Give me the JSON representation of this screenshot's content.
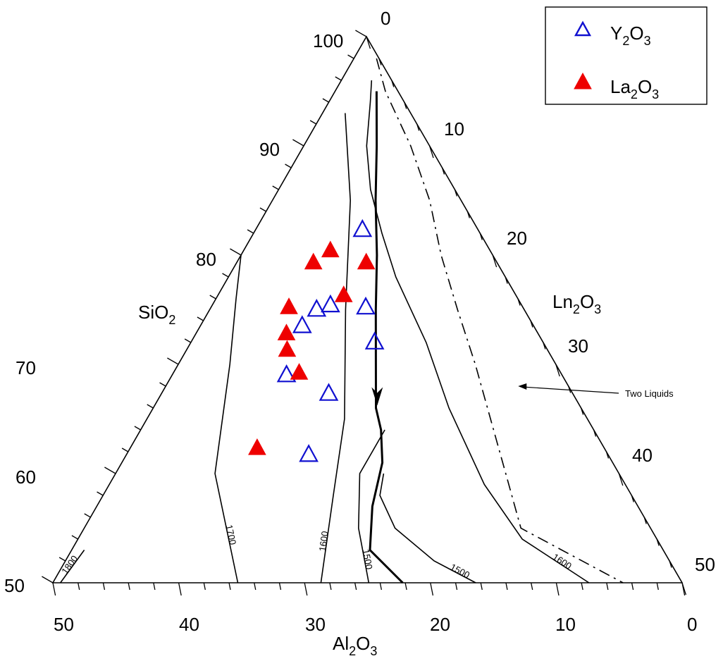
{
  "chart_data": {
    "type": "scatter",
    "subtype": "ternary",
    "axes": {
      "left": {
        "component": "SiO",
        "component_sub": "2",
        "ticks": [
          "50",
          "60",
          "70",
          "80",
          "90",
          "100"
        ]
      },
      "bottom": {
        "component": "Al",
        "component_sub1": "2",
        "component_mid": "O",
        "component_sub2": "3",
        "ticks": [
          "50",
          "40",
          "30",
          "20",
          "10",
          "0"
        ]
      },
      "right": {
        "component": "Ln",
        "component_sub1": "2",
        "component_mid": "O",
        "component_sub2": "3",
        "ticks": [
          "0",
          "10",
          "20",
          "30",
          "40",
          "50"
        ]
      }
    },
    "legend": {
      "placement": "top-right",
      "items": [
        {
          "base": "Y",
          "sub1": "2",
          "mid": "O",
          "sub2": "3",
          "marker": "triangle-open",
          "color": "#1010d0"
        },
        {
          "base": "La",
          "sub1": "2",
          "mid": "O",
          "sub2": "3",
          "marker": "triangle-filled",
          "color": "#ee0000"
        }
      ]
    },
    "series": [
      {
        "name": "Y2O3",
        "marker": "triangle-open",
        "color": "#1010d0",
        "points": [
          {
            "SiO2": 82.3,
            "Ln2O3": 8.5
          },
          {
            "SiO2": 75.2,
            "Ln2O3": 12.3
          },
          {
            "SiO2": 75.4,
            "Ln2O3": 9.4
          },
          {
            "SiO2": 75.0,
            "Ln2O3": 8.5
          },
          {
            "SiO2": 73.5,
            "Ln2O3": 8.1
          },
          {
            "SiO2": 72.0,
            "Ln2O3": 14.6
          },
          {
            "SiO2": 69.0,
            "Ln2O3": 9.1
          },
          {
            "SiO2": 67.3,
            "Ln2O3": 13.3
          },
          {
            "SiO2": 61.7,
            "Ln2O3": 14.5
          }
        ]
      },
      {
        "name": "La2O3",
        "marker": "triangle-filled",
        "color": "#ee0000",
        "points": [
          {
            "SiO2": 80.4,
            "Ln2O3": 6.9
          },
          {
            "SiO2": 79.3,
            "Ln2O3": 6.1
          },
          {
            "SiO2": 79.3,
            "Ln2O3": 10.3
          },
          {
            "SiO2": 76.3,
            "Ln2O3": 10.0
          },
          {
            "SiO2": 75.2,
            "Ln2O3": 6.2
          },
          {
            "SiO2": 72.8,
            "Ln2O3": 7.2
          },
          {
            "SiO2": 71.3,
            "Ln2O3": 8.0
          },
          {
            "SiO2": 69.2,
            "Ln2O3": 10.0
          },
          {
            "SiO2": 62.3,
            "Ln2O3": 10.1
          }
        ]
      }
    ],
    "isotherms": [
      {
        "label": "1800",
        "points": [
          [
            53.0,
            1.0
          ],
          [
            50.0,
            0.6
          ]
        ]
      },
      {
        "label": "1700",
        "points": [
          [
            80.0,
            0.0
          ],
          [
            76.0,
            1.6
          ],
          [
            70.0,
            4.1
          ],
          [
            60.0,
            7.9
          ],
          [
            50.0,
            14.7
          ]
        ]
      },
      {
        "label": "1600",
        "points": [
          [
            93.0,
            1.8
          ],
          [
            85.0,
            6.2
          ],
          [
            75.0,
            10.8
          ],
          [
            65.0,
            15.7
          ],
          [
            58.0,
            18.3
          ],
          [
            50.0,
            21.3
          ]
        ]
      },
      {
        "label": "1500",
        "points": [
          [
            64.0,
            19.4
          ],
          [
            60.0,
            19.4
          ],
          [
            55.0,
            21.8
          ],
          [
            50.0,
            25.1
          ]
        ]
      },
      {
        "label": "1500",
        "points": [
          [
            60.0,
            21.3
          ],
          [
            58.0,
            22.0
          ],
          [
            55.0,
            24.7
          ],
          [
            52.0,
            29.3
          ],
          [
            50.0,
            33.6
          ]
        ]
      },
      {
        "label": "1600",
        "points": [
          [
            96.0,
            2.4
          ],
          [
            94.0,
            3.3
          ],
          [
            90.0,
            5.0
          ],
          [
            86.0,
            7.3
          ],
          [
            82.0,
            10.2
          ],
          [
            78.0,
            13.3
          ],
          [
            72.0,
            18.7
          ],
          [
            66.0,
            23.5
          ],
          [
            59.0,
            29.8
          ],
          [
            54.0,
            35.3
          ],
          [
            50.0,
            42.6
          ]
        ]
      }
    ],
    "boundary_curves": [
      {
        "style": "solid",
        "points": [
          [
            95.0,
            3.3
          ],
          [
            90.0,
            5.8
          ],
          [
            85.0,
            8.2
          ],
          [
            80.0,
            10.8
          ],
          [
            75.0,
            13.2
          ],
          [
            70.0,
            15.7
          ],
          [
            66.0,
            17.7
          ],
          [
            64.0,
            19.1
          ],
          [
            61.0,
            20.7
          ],
          [
            57.0,
            21.9
          ],
          [
            53.0,
            23.7
          ],
          [
            50.0,
            27.8
          ]
        ]
      }
    ],
    "arrows": [
      {
        "at": [
          67.0,
          17.3
        ],
        "dir": [
          -1.0,
          0.55
        ]
      }
    ],
    "two_liquids_curve": {
      "style": "dash-dot",
      "points": [
        [
          98.0,
          1.8
        ],
        [
          95.0,
          4.0
        ],
        [
          90.0,
          8.5
        ],
        [
          85.0,
          12.5
        ],
        [
          80.0,
          15.9
        ],
        [
          75.0,
          19.7
        ],
        [
          70.0,
          23.6
        ],
        [
          65.0,
          27.3
        ],
        [
          60.0,
          31.0
        ],
        [
          55.0,
          34.7
        ],
        [
          50.0,
          45.3
        ]
      ]
    },
    "annotations": [
      {
        "text": "Two Liquids",
        "arrow_to": [
          68.0,
          28.0
        ]
      }
    ]
  }
}
